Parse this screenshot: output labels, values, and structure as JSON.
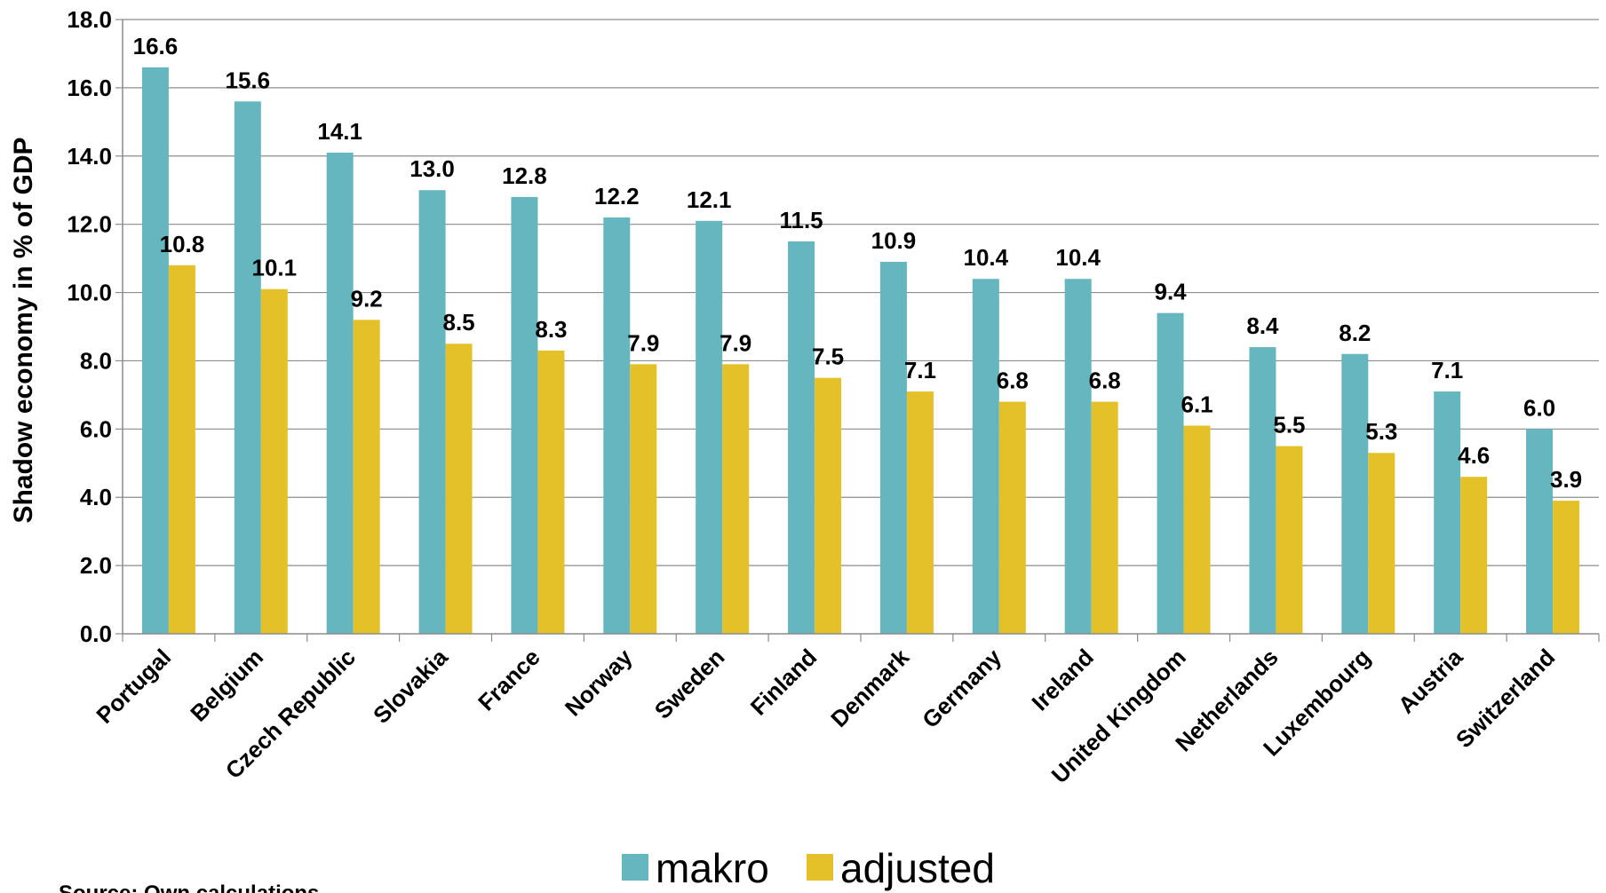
{
  "chart_data": {
    "type": "bar",
    "categories": [
      "Portugal",
      "Belgium",
      "Czech Republic",
      "Slovakia",
      "France",
      "Norway",
      "Sweden",
      "Finland",
      "Denmark",
      "Germany",
      "Ireland",
      "United Kingdom",
      "Netherlands",
      "Luxembourg",
      "Austria",
      "Switzerland"
    ],
    "series": [
      {
        "name": "makro",
        "color": "#66b6bf",
        "values": [
          16.6,
          15.6,
          14.1,
          13.0,
          12.8,
          12.2,
          12.1,
          11.5,
          10.9,
          10.4,
          10.4,
          9.4,
          8.4,
          8.2,
          7.1,
          6.0
        ]
      },
      {
        "name": "adjusted",
        "color": "#e4c129",
        "values": [
          10.8,
          10.1,
          9.2,
          8.5,
          8.3,
          7.9,
          7.9,
          7.5,
          7.1,
          6.8,
          6.8,
          6.1,
          5.5,
          5.3,
          4.6,
          3.9
        ]
      }
    ],
    "ylabel": "Shadow  economy in % of GDP",
    "xlabel": "",
    "title": "",
    "ylim": [
      0,
      18
    ],
    "yticks": [
      "0.0",
      "2.0",
      "4.0",
      "6.0",
      "8.0",
      "10.0",
      "12.0",
      "14.0",
      "16.0",
      "18.0"
    ],
    "grid": true,
    "legend_position": "bottom-center"
  },
  "source_note": "Source: Own calculations"
}
